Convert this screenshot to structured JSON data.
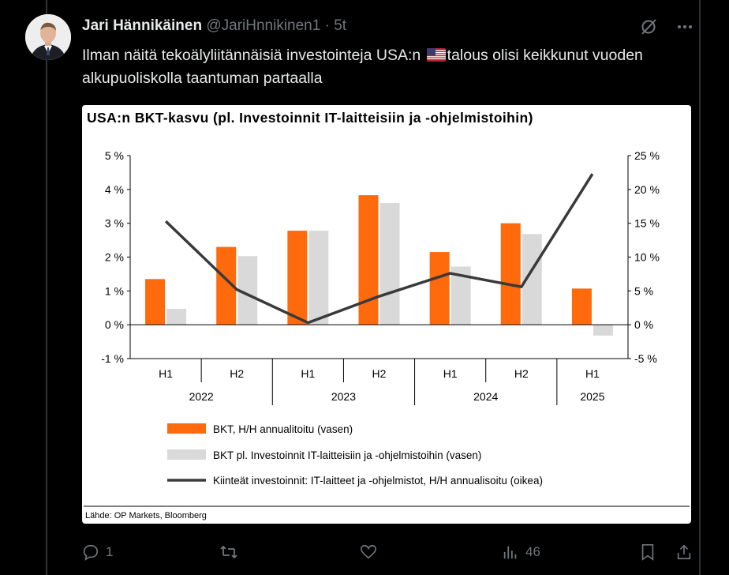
{
  "tweet": {
    "author": "Jari Hännikäinen",
    "handle": "@JariHnnikinen1",
    "separator": "·",
    "time": "5t",
    "text_before_flag": "Ilman näitä tekoälyliitännäisiä investointeja USA:n",
    "text_after_flag": "talous olisi keikkunut vuoden alkupuoliskolla taantuman partaalla"
  },
  "actions": {
    "reply_count": "1",
    "views_count": "46"
  },
  "chart_data": {
    "type": "bar",
    "title": "USA:n BKT-kasvu (pl. Investoinnit IT-laitteisiin ja -ohjelmistoihin)",
    "source": "Lähde: OP Markets, Bloomberg",
    "categories": [
      "H1",
      "H2",
      "H1",
      "H2",
      "H1",
      "H2",
      "H1"
    ],
    "years": [
      {
        "label": "2022",
        "span": 2
      },
      {
        "label": "2023",
        "span": 2
      },
      {
        "label": "2024",
        "span": 2
      },
      {
        "label": "2025",
        "span": 1
      }
    ],
    "left_axis": {
      "ylim": [
        -1,
        5
      ],
      "ticks": [
        "-1 %",
        "0 %",
        "1 %",
        "2 %",
        "3 %",
        "4 %",
        "5 %"
      ],
      "tick_values": [
        -1,
        0,
        1,
        2,
        3,
        4,
        5
      ]
    },
    "right_axis": {
      "ylim": [
        -5,
        25
      ],
      "ticks": [
        "-5 %",
        "0 %",
        "5 %",
        "10 %",
        "15 %",
        "20 %",
        "25 %"
      ],
      "tick_values": [
        -5,
        0,
        5,
        10,
        15,
        20,
        25
      ]
    },
    "series": [
      {
        "name": "BKT, H/H annualitoitu (vasen)",
        "type": "bar",
        "axis": "left",
        "color": "#ff6a0d",
        "values": [
          1.35,
          2.3,
          2.78,
          3.83,
          2.15,
          3.0,
          1.07
        ]
      },
      {
        "name": "BKT pl. Investoinnit IT-laitteisiin ja -ohjelmistoihin (vasen)",
        "type": "bar",
        "axis": "left",
        "color": "#d9d9d9",
        "values": [
          0.47,
          2.03,
          2.78,
          3.6,
          1.72,
          2.68,
          -0.32
        ]
      },
      {
        "name": "Kiinteät investoinnit: IT-laitteet ja -ohjelmistot, H/H annualisoitu (oikea)",
        "type": "line",
        "axis": "right",
        "color": "#3a3a3a",
        "values": [
          15.3,
          5.2,
          0.3,
          4.2,
          7.6,
          5.6,
          22.3
        ]
      }
    ],
    "grid": false,
    "legend_position": "bottom"
  }
}
